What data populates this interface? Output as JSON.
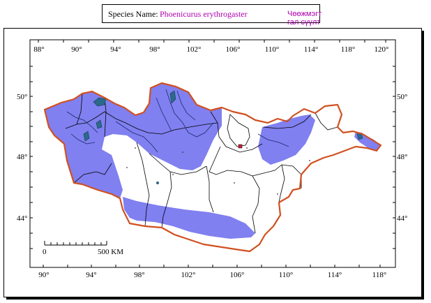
{
  "title": {
    "label": "Species Name:",
    "species": "Phoenicurus erythrogaster",
    "local_name": "Чөөжмэгт гал сүүлт"
  },
  "map": {
    "top_longitude_labels": [
      "88°",
      "90°",
      "94°",
      "98°",
      "102°",
      "106°",
      "110°",
      "114°",
      "118°",
      "120°"
    ],
    "bottom_longitude_labels": [
      "90°",
      "94°",
      "98°",
      "102°",
      "106°",
      "110°",
      "114°",
      "118°"
    ],
    "left_latitude_labels": [
      "50°",
      "48°",
      "44°"
    ],
    "right_latitude_labels": [
      "50°",
      "48°",
      "44°"
    ],
    "scale_bar": {
      "start_label": "0",
      "end_label": "500 KM"
    },
    "colors": {
      "distribution": "#8080f0",
      "border": "#d05020",
      "lake": "#2a6a8a",
      "capital_marker": "#cc2040"
    }
  }
}
